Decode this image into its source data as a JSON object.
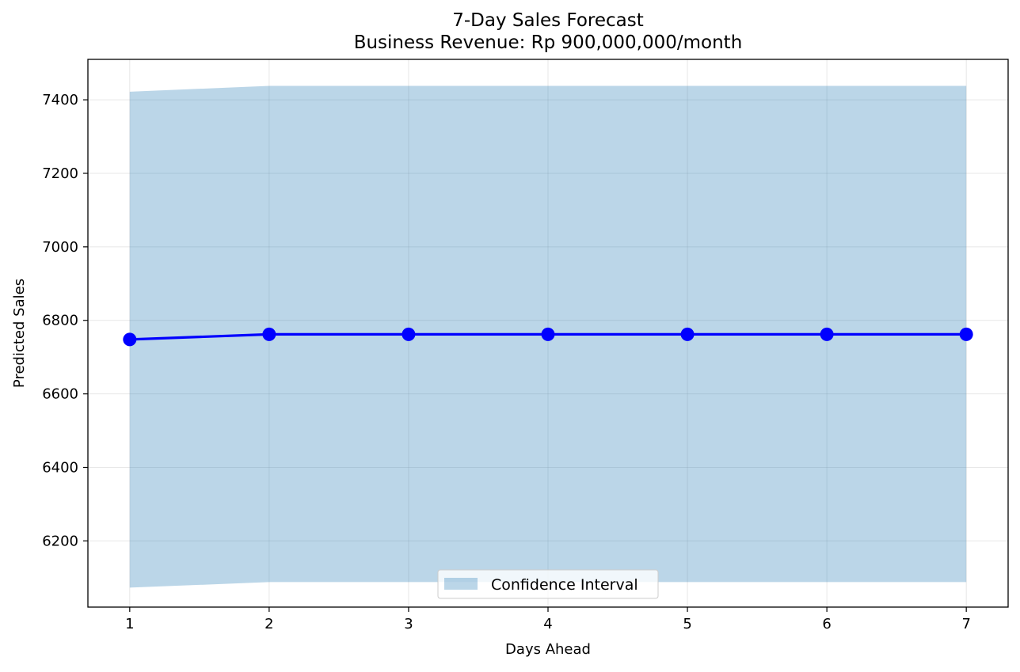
{
  "chart_data": {
    "type": "line",
    "title": "7-Day Sales Forecast",
    "subtitle": "Business Revenue: Rp 900,000,000/month",
    "xlabel": "Days Ahead",
    "ylabel": "Predicted Sales",
    "x": [
      1,
      2,
      3,
      4,
      5,
      6,
      7
    ],
    "xlim": [
      0.7,
      7.3
    ],
    "ylim": [
      6020,
      7510
    ],
    "xticks": [
      1,
      2,
      3,
      4,
      5,
      6,
      7
    ],
    "yticks": [
      6200,
      6400,
      6600,
      6800,
      7000,
      7200,
      7400
    ],
    "grid": true,
    "legend_position": "lower center",
    "series": [
      {
        "values": [
          6748,
          6762,
          6762,
          6762,
          6762,
          6762,
          6762
        ],
        "color": "#0000ff",
        "marker": "circle"
      }
    ],
    "confidence_interval": {
      "name": "Confidence Interval",
      "lower": [
        6073,
        6088,
        6088,
        6088,
        6088,
        6088,
        6088
      ],
      "upper": [
        7422,
        7438,
        7438,
        7438,
        7438,
        7438,
        7438
      ],
      "color": "#1f77b4"
    }
  }
}
